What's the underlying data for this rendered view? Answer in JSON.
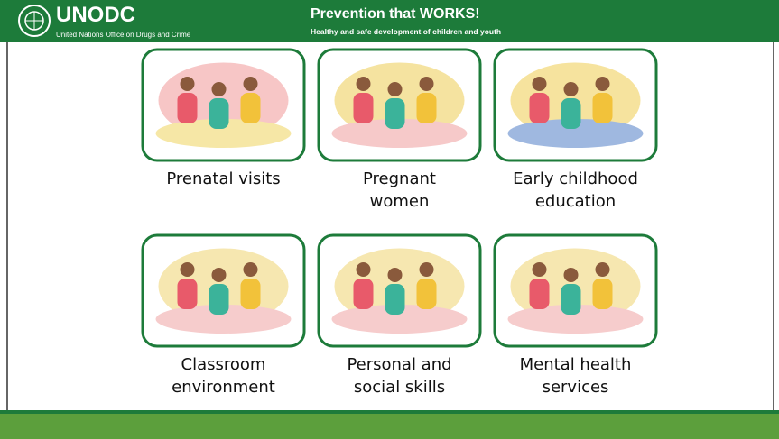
{
  "header": {
    "org": "UNODC",
    "org_full": "United Nations Office on Drugs and Crime",
    "title": "Prevention that WORKS!",
    "subtitle": "Healthy and safe development of children and youth"
  },
  "cards": [
    {
      "lines": [
        "Prenatal visits"
      ]
    },
    {
      "lines": [
        "Pregnant",
        "women"
      ]
    },
    {
      "lines": [
        "Early childhood",
        "education"
      ]
    },
    {
      "lines": [
        "Classroom",
        "environment"
      ]
    },
    {
      "lines": [
        "Personal and",
        "social skills"
      ]
    },
    {
      "lines": [
        "Mental health",
        "services"
      ]
    }
  ]
}
